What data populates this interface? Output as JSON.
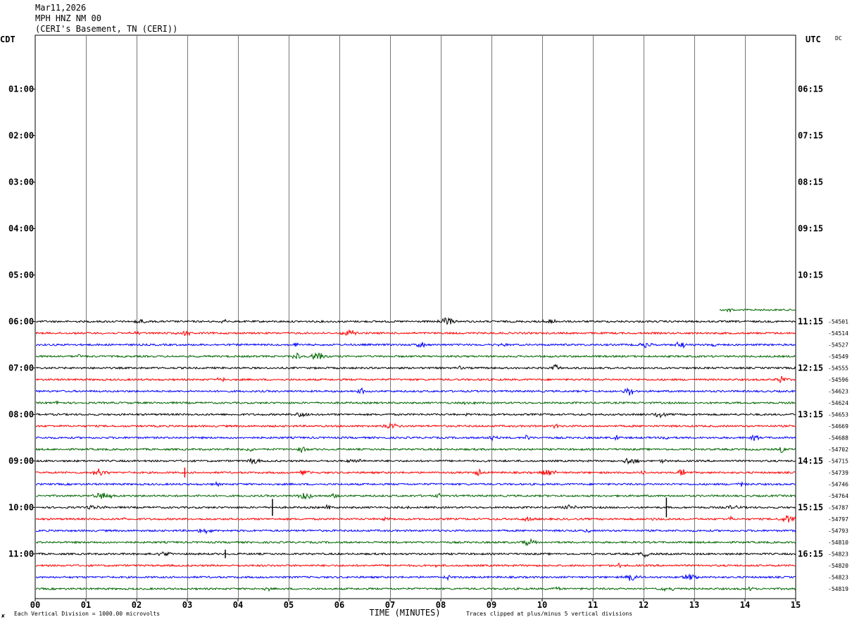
{
  "header": {
    "date": "Mar11,2026",
    "station": "MPH HNZ NM 00",
    "location": "(CERI's Basement, TN (CERI))"
  },
  "left_tz": "CDT",
  "right_tz": "UTC",
  "dc_label": "DC",
  "footer": {
    "scale_note": "Each Vertical Division = 1000.00 microvolts",
    "clip_note": "Traces clipped at plus/minus 5 vertical divisions",
    "corner_mark": "✘"
  },
  "chart_data": {
    "type": "line",
    "title": "",
    "xlabel": "TIME (MINUTES)",
    "ylabel": "",
    "x_ticks": [
      "00",
      "01",
      "02",
      "03",
      "04",
      "05",
      "06",
      "07",
      "08",
      "09",
      "10",
      "11",
      "12",
      "13",
      "14",
      "15"
    ],
    "xlim": [
      0,
      15
    ],
    "grid": true,
    "left_hour_labels": [
      "01:00",
      "02:00",
      "03:00",
      "04:00",
      "05:00",
      "06:00",
      "07:00",
      "08:00",
      "09:00",
      "10:00",
      "11:00"
    ],
    "right_hour_labels": [
      "06:15",
      "07:15",
      "08:15",
      "09:15",
      "10:15",
      "11:15",
      "12:15",
      "13:15",
      "14:15",
      "15:15",
      "16:15"
    ],
    "trace_colors": [
      "#000000",
      "#ff0000",
      "#0000ff",
      "#006600"
    ],
    "partial_trace": {
      "start_minute": 13.5,
      "end_minute": 15,
      "color": "#006600"
    },
    "traces": [
      {
        "start_time": "06:00",
        "dc_offset": "-54501",
        "color": "#000000"
      },
      {
        "start_time": "06:15",
        "dc_offset": "-54514",
        "color": "#ff0000"
      },
      {
        "start_time": "06:30",
        "dc_offset": "-54527",
        "color": "#0000ff"
      },
      {
        "start_time": "06:45",
        "dc_offset": "-54549",
        "color": "#006600"
      },
      {
        "start_time": "07:00",
        "dc_offset": "-54555",
        "color": "#000000"
      },
      {
        "start_time": "07:15",
        "dc_offset": "-54596",
        "color": "#ff0000"
      },
      {
        "start_time": "07:30",
        "dc_offset": "-54623",
        "color": "#0000ff"
      },
      {
        "start_time": "07:45",
        "dc_offset": "-54624",
        "color": "#006600"
      },
      {
        "start_time": "08:00",
        "dc_offset": "-54653",
        "color": "#000000"
      },
      {
        "start_time": "08:15",
        "dc_offset": "-54669",
        "color": "#ff0000"
      },
      {
        "start_time": "08:30",
        "dc_offset": "-54688",
        "color": "#0000ff"
      },
      {
        "start_time": "08:45",
        "dc_offset": "-54702",
        "color": "#006600"
      },
      {
        "start_time": "09:00",
        "dc_offset": "-54715",
        "color": "#000000"
      },
      {
        "start_time": "09:15",
        "dc_offset": "-54739",
        "color": "#ff0000"
      },
      {
        "start_time": "09:30",
        "dc_offset": "-54746",
        "color": "#0000ff"
      },
      {
        "start_time": "09:45",
        "dc_offset": "-54764",
        "color": "#006600"
      },
      {
        "start_time": "10:00",
        "dc_offset": "-54787",
        "color": "#000000"
      },
      {
        "start_time": "10:15",
        "dc_offset": "-54797",
        "color": "#ff0000"
      },
      {
        "start_time": "10:30",
        "dc_offset": "-54793",
        "color": "#0000ff"
      },
      {
        "start_time": "10:45",
        "dc_offset": "-54810",
        "color": "#006600"
      },
      {
        "start_time": "11:00",
        "dc_offset": "-54823",
        "color": "#000000"
      },
      {
        "start_time": "11:15",
        "dc_offset": "-54820",
        "color": "#ff0000"
      },
      {
        "start_time": "11:30",
        "dc_offset": "-54823",
        "color": "#0000ff"
      },
      {
        "start_time": "11:45",
        "dc_offset": "-54819",
        "color": "#006600"
      }
    ]
  }
}
